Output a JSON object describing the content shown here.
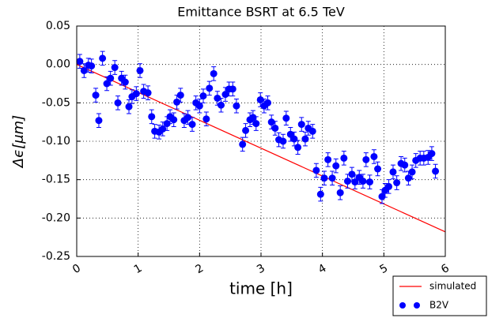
{
  "chart_data": {
    "type": "scatter",
    "title": "Emittance BSRT at 6.5 TeV",
    "x_label": "time [h]",
    "y_label": "Δϵ[μm]",
    "xlim": [
      0,
      6
    ],
    "ylim": [
      -0.25,
      0.05
    ],
    "xticks": [
      0,
      1,
      2,
      3,
      4,
      5,
      6
    ],
    "yticks": [
      0.05,
      {
        "value": 0,
        "label": "0.00"
      },
      -0.05,
      {
        "value": -0.1,
        "label": "-0.10"
      },
      -0.15,
      {
        "value": -0.2,
        "label": "-0.20"
      },
      -0.25
    ],
    "grid": true,
    "legend": "lower right",
    "series": [
      {
        "name": "simulated",
        "type": "line",
        "color": "#ff0000",
        "x": [
          0,
          6
        ],
        "values": [
          0,
          -0.218
        ]
      },
      {
        "name": "B2V",
        "type": "errorbar",
        "color": "#0000ff",
        "x": [
          0.05,
          0.12,
          0.19,
          0.24,
          0.31,
          0.36,
          0.42,
          0.49,
          0.55,
          0.62,
          0.67,
          0.73,
          0.79,
          0.85,
          0.9,
          0.97,
          1.03,
          1.09,
          1.16,
          1.22,
          1.27,
          1.34,
          1.4,
          1.47,
          1.52,
          1.58,
          1.63,
          1.69,
          1.75,
          1.81,
          1.88,
          1.94,
          2.0,
          2.06,
          2.11,
          2.16,
          2.23,
          2.29,
          2.35,
          2.42,
          2.48,
          2.54,
          2.6,
          2.7,
          2.75,
          2.82,
          2.87,
          2.92,
          2.99,
          3.05,
          3.11,
          3.17,
          3.23,
          3.29,
          3.36,
          3.41,
          3.48,
          3.54,
          3.6,
          3.66,
          3.72,
          3.77,
          3.84,
          3.9,
          3.97,
          4.03,
          4.09,
          4.16,
          4.22,
          4.29,
          4.35,
          4.41,
          4.48,
          4.53,
          4.6,
          4.66,
          4.71,
          4.77,
          4.84,
          4.9,
          4.97,
          5.02,
          5.08,
          5.15,
          5.21,
          5.28,
          5.34,
          5.4,
          5.46,
          5.52,
          5.59,
          5.65,
          5.72,
          5.78,
          5.84
        ],
        "values": [
          0.004,
          -0.008,
          -0.001,
          -0.002,
          -0.04,
          -0.073,
          0.008,
          -0.025,
          -0.018,
          -0.004,
          -0.05,
          -0.018,
          -0.023,
          -0.055,
          -0.042,
          -0.038,
          -0.008,
          -0.035,
          -0.037,
          -0.068,
          -0.087,
          -0.088,
          -0.084,
          -0.077,
          -0.068,
          -0.072,
          -0.049,
          -0.04,
          -0.073,
          -0.069,
          -0.078,
          -0.05,
          -0.054,
          -0.041,
          -0.071,
          -0.031,
          -0.012,
          -0.044,
          -0.053,
          -0.039,
          -0.032,
          -0.032,
          -0.054,
          -0.104,
          -0.086,
          -0.072,
          -0.069,
          -0.077,
          -0.046,
          -0.054,
          -0.05,
          -0.075,
          -0.083,
          -0.098,
          -0.1,
          -0.07,
          -0.091,
          -0.097,
          -0.108,
          -0.078,
          -0.097,
          -0.083,
          -0.087,
          -0.138,
          -0.169,
          -0.148,
          -0.124,
          -0.148,
          -0.132,
          -0.167,
          -0.122,
          -0.152,
          -0.143,
          -0.153,
          -0.147,
          -0.152,
          -0.124,
          -0.153,
          -0.12,
          -0.136,
          -0.172,
          -0.164,
          -0.159,
          -0.14,
          -0.154,
          -0.129,
          -0.131,
          -0.148,
          -0.14,
          -0.125,
          -0.122,
          -0.122,
          -0.121,
          -0.116,
          -0.139
        ],
        "errors": [
          0.009,
          0.009,
          0.009,
          0.009,
          0.009,
          0.009,
          0.009,
          0.009,
          0.009,
          0.009,
          0.009,
          0.009,
          0.009,
          0.009,
          0.009,
          0.009,
          0.009,
          0.009,
          0.009,
          0.009,
          0.009,
          0.009,
          0.009,
          0.009,
          0.009,
          0.009,
          0.009,
          0.009,
          0.009,
          0.009,
          0.009,
          0.009,
          0.009,
          0.009,
          0.009,
          0.009,
          0.009,
          0.009,
          0.009,
          0.009,
          0.009,
          0.009,
          0.009,
          0.009,
          0.009,
          0.009,
          0.009,
          0.009,
          0.009,
          0.009,
          0.009,
          0.009,
          0.009,
          0.009,
          0.009,
          0.009,
          0.009,
          0.009,
          0.009,
          0.009,
          0.009,
          0.009,
          0.009,
          0.009,
          0.009,
          0.009,
          0.009,
          0.009,
          0.009,
          0.009,
          0.009,
          0.009,
          0.009,
          0.009,
          0.009,
          0.009,
          0.009,
          0.009,
          0.009,
          0.009,
          0.009,
          0.009,
          0.009,
          0.009,
          0.009,
          0.009,
          0.009,
          0.009,
          0.009,
          0.009,
          0.009,
          0.009,
          0.009,
          0.009,
          0.009
        ]
      }
    ]
  }
}
